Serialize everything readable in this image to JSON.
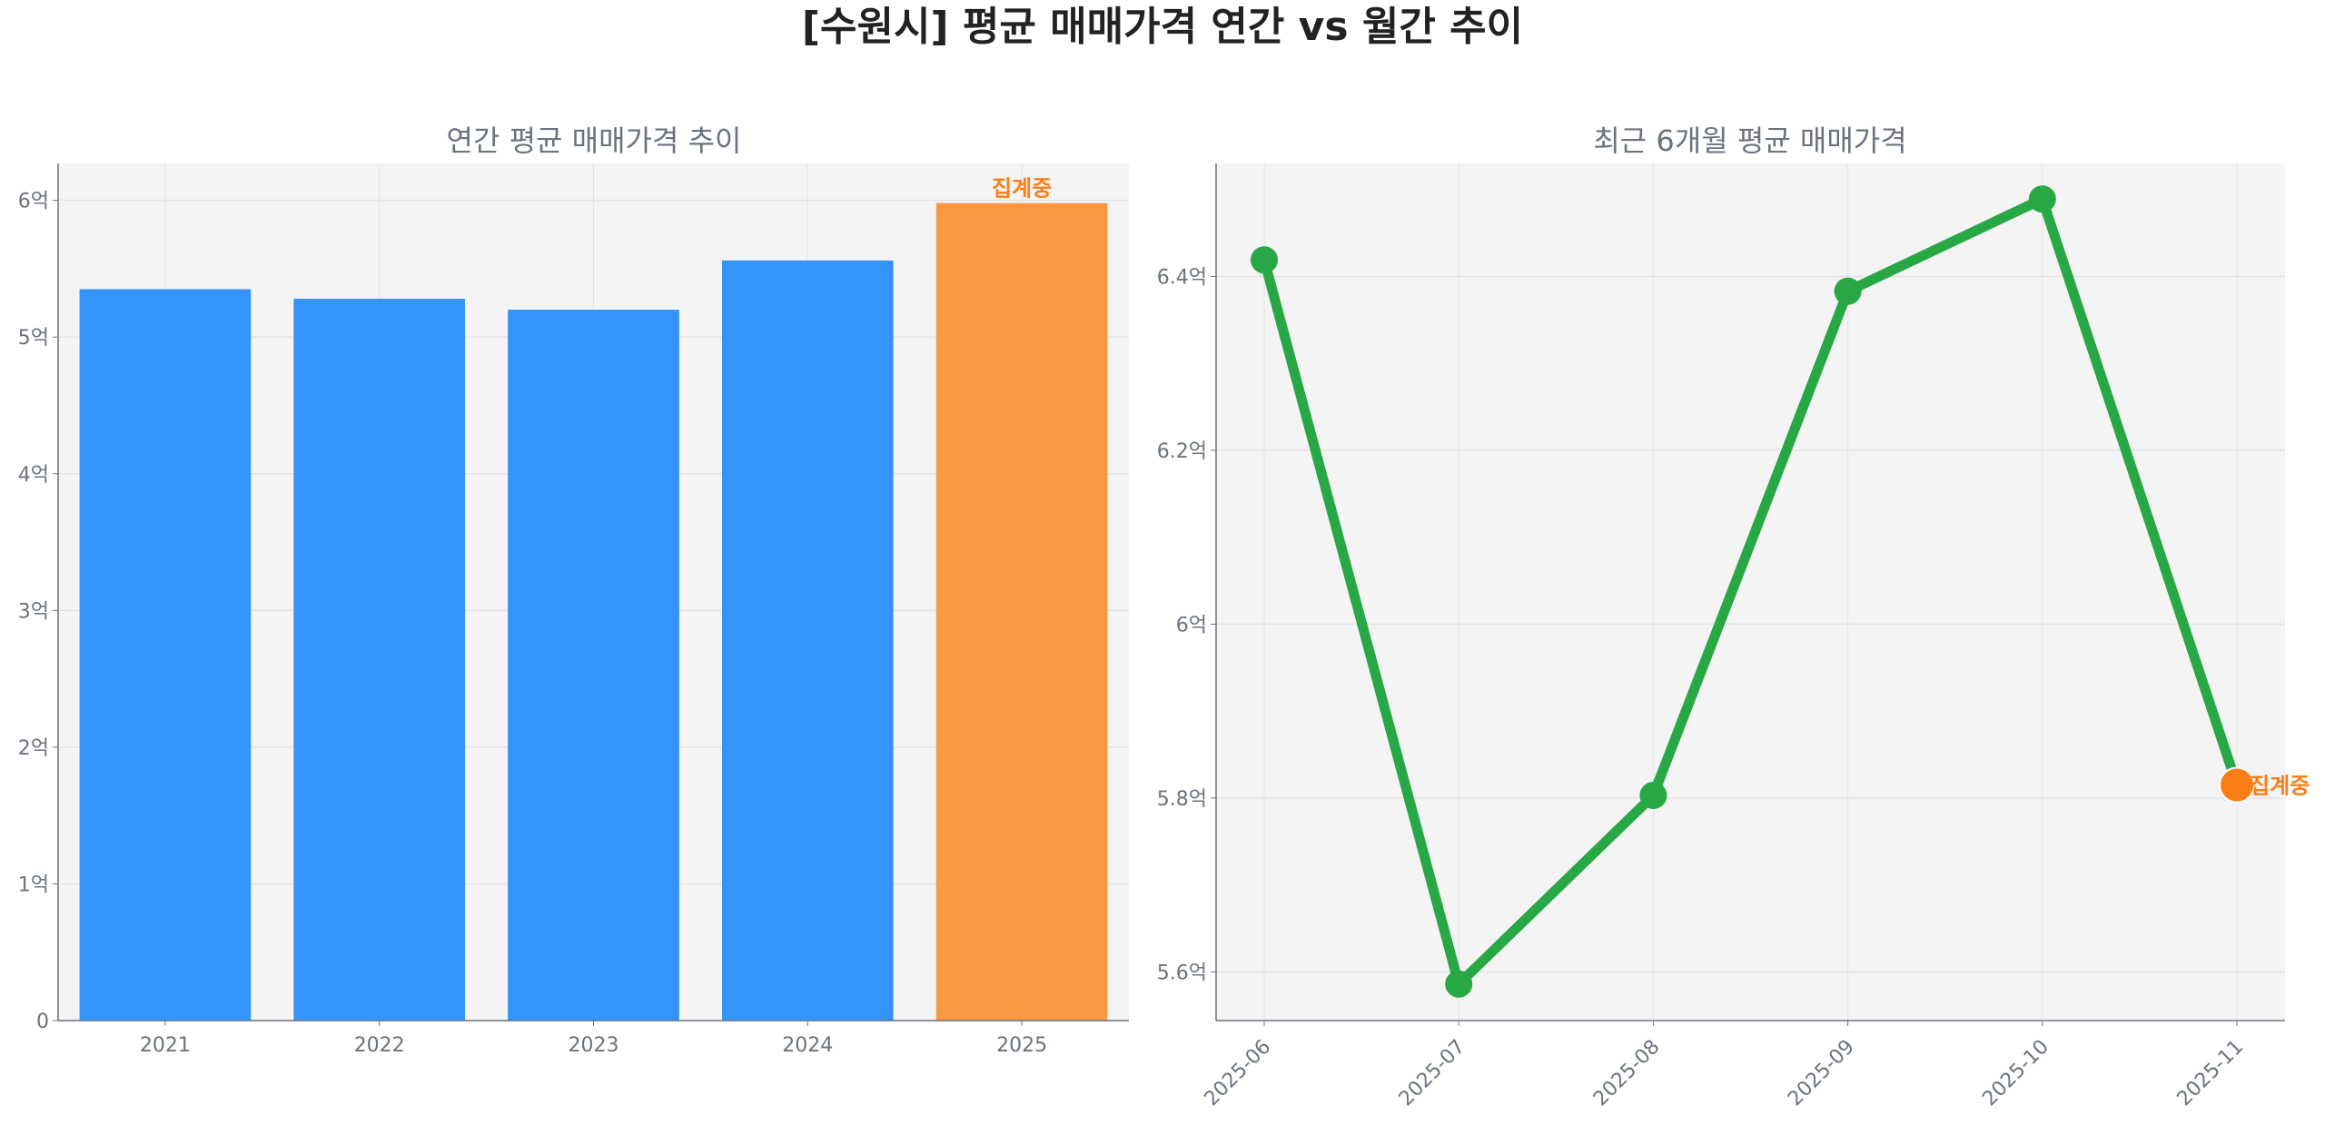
{
  "title": "[수원시] 평균 매매가격 연간 vs 월간 추이",
  "colors": {
    "bar": "#3294fc",
    "bar_highlight": "#f99840",
    "line": "#28a745",
    "highlight": "#fd7e14",
    "plot_bg": "#f4f4f4",
    "text": "#6b7280"
  },
  "chart_data": [
    {
      "type": "bar",
      "title": "연간 평균 매매가격 추이",
      "categories": [
        "2021",
        "2022",
        "2023",
        "2024",
        "2025"
      ],
      "values": [
        5.35,
        5.28,
        5.2,
        5.56,
        5.98
      ],
      "unit": "억",
      "ylim": [
        0,
        6.27
      ],
      "yticks": [
        0,
        1,
        2,
        3,
        4,
        5,
        6
      ],
      "ytick_labels": [
        "0",
        "1억",
        "2억",
        "3억",
        "4억",
        "5억",
        "6억"
      ],
      "grid": true,
      "annotation": {
        "category": "2025",
        "text": "집계중"
      }
    },
    {
      "type": "line",
      "title": "최근 6개월 평균 매매가격",
      "x": [
        "2025-06",
        "2025-07",
        "2025-08",
        "2025-09",
        "2025-10",
        "2025-11"
      ],
      "values": [
        6.419,
        5.586,
        5.803,
        6.383,
        6.489,
        5.815
      ],
      "unit": "억",
      "ylim": [
        5.544,
        6.53
      ],
      "yticks": [
        5.6,
        5.8,
        6.0,
        6.2,
        6.4
      ],
      "ytick_labels": [
        "5.6억",
        "5.8억",
        "6억",
        "6.2억",
        "6.4억"
      ],
      "grid": true,
      "annotation": {
        "x": "2025-11",
        "text": "집계중"
      }
    }
  ]
}
